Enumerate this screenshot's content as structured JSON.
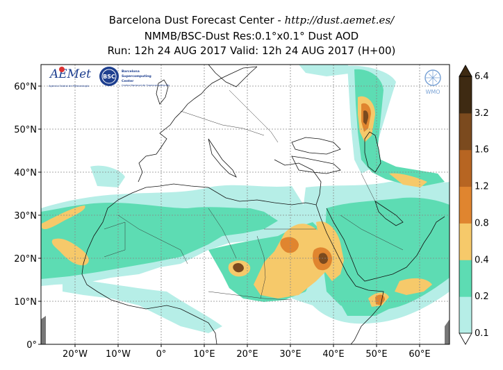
{
  "title": {
    "line1_prefix": "Barcelona Dust Forecast Center - ",
    "line1_url": "http://dust.aemet.es/",
    "line2": "NMMB/BSC-Dust   Res:0.1°x0.1°   Dust AOD",
    "line3": "Run: 12h 24 AUG 2017   Valid: 12h 24 AUG 2017 (H+00)"
  },
  "axes": {
    "lat_ticks": [
      "60°N",
      "50°N",
      "40°N",
      "30°N",
      "20°N",
      "10°N",
      "0°"
    ],
    "lon_ticks": [
      "20°W",
      "10°W",
      "0°",
      "10°E",
      "20°E",
      "30°E",
      "40°E",
      "50°E",
      "60°E"
    ]
  },
  "colorbar": {
    "levels": [
      "0.1",
      "0.2",
      "0.4",
      "0.8",
      "1.2",
      "1.6",
      "3.2",
      "6.4"
    ],
    "colors": [
      "#b6eee7",
      "#5ddcb3",
      "#f6c96a",
      "#e0852f",
      "#b76522",
      "#7b4a1e",
      "#3e2a12"
    ]
  },
  "logos": {
    "aemet": "AEMet",
    "aemet_sub": "Agencia Estatal de Meteorología",
    "bsc": "BSC",
    "bsc_name": "Barcelona Supercomputing Center",
    "bsc_sub": "Centro Nacional de Supercomputación",
    "wmo": "WMO"
  }
}
